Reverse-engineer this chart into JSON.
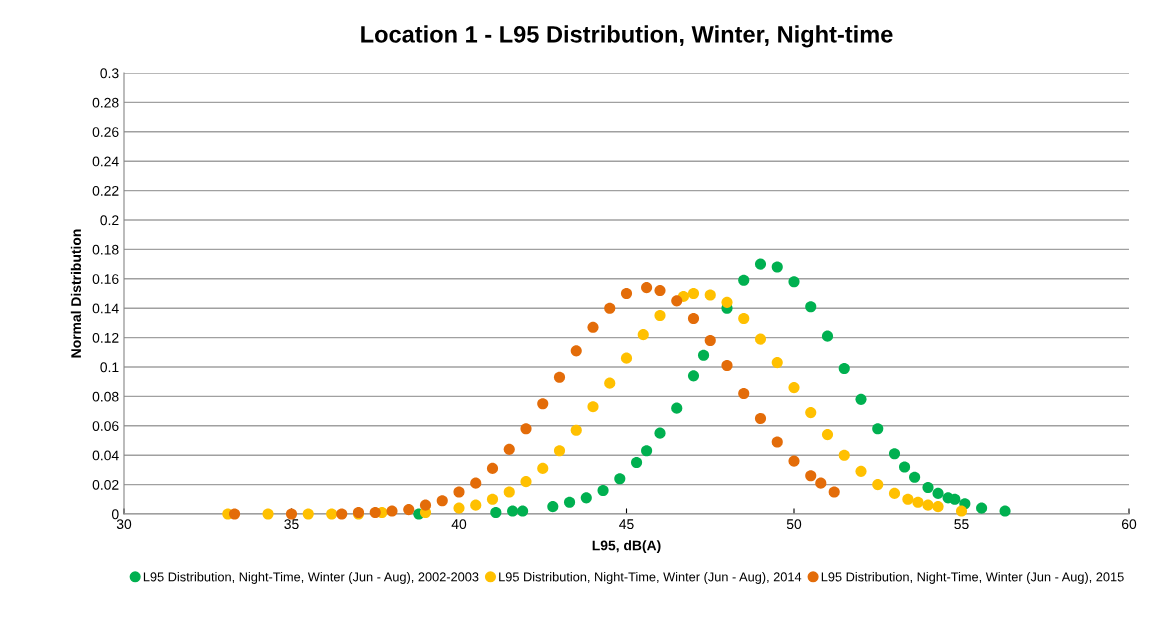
{
  "chart_data": {
    "type": "scatter",
    "title": "Location 1 - L95 Distribution, Winter, Night-time",
    "xlabel": "L95, dB(A)",
    "ylabel": "Normal Distribution",
    "xlim": [
      30,
      60
    ],
    "xticks": [
      30,
      35,
      40,
      45,
      50,
      55,
      60
    ],
    "ylim": [
      0,
      0.3
    ],
    "yticks": [
      0,
      0.02,
      0.04,
      0.06,
      0.08,
      0.1,
      0.12,
      0.14,
      0.16,
      0.18,
      0.2,
      0.22,
      0.24,
      0.26,
      0.28,
      0.3
    ],
    "grid": "y",
    "legend": "bottom",
    "marker": "circle",
    "series": [
      {
        "name": "L95 Distribution, Night-Time, Winter (Jun - Aug), 2002-2003",
        "color": "#00b050",
        "x": [
          38.8,
          41.1,
          41.6,
          41.9,
          42.8,
          43.3,
          43.8,
          44.3,
          44.8,
          45.3,
          45.6,
          46.0,
          46.5,
          47.0,
          47.3,
          48.0,
          48.5,
          49.0,
          49.5,
          50.0,
          50.5,
          51.0,
          51.5,
          52.0,
          52.5,
          53.0,
          53.3,
          53.6,
          54.0,
          54.3,
          54.6,
          54.8,
          55.1,
          55.6,
          56.3
        ],
        "values": [
          0.0,
          0.001,
          0.002,
          0.002,
          0.005,
          0.008,
          0.011,
          0.016,
          0.024,
          0.035,
          0.043,
          0.055,
          0.072,
          0.094,
          0.108,
          0.14,
          0.159,
          0.17,
          0.168,
          0.158,
          0.141,
          0.121,
          0.099,
          0.078,
          0.058,
          0.041,
          0.032,
          0.025,
          0.018,
          0.014,
          0.011,
          0.01,
          0.007,
          0.004,
          0.002
        ]
      },
      {
        "name": "L95 Distribution, Night-Time, Winter (Jun - Aug), 2014",
        "color": "#ffc000",
        "x": [
          33.1,
          34.3,
          35.5,
          36.2,
          37.0,
          37.7,
          39.0,
          40.0,
          40.5,
          41.0,
          41.5,
          42.0,
          42.5,
          43.0,
          43.5,
          44.0,
          44.5,
          45.0,
          45.5,
          46.0,
          46.7,
          47.0,
          47.5,
          48.0,
          48.5,
          49.0,
          49.5,
          50.0,
          50.5,
          51.0,
          51.5,
          52.0,
          52.5,
          53.0,
          53.4,
          53.7,
          54.0,
          54.3,
          55.0
        ],
        "values": [
          0.0,
          0.0,
          0.0,
          0.0,
          0.0,
          0.001,
          0.001,
          0.004,
          0.006,
          0.01,
          0.015,
          0.022,
          0.031,
          0.043,
          0.057,
          0.073,
          0.089,
          0.106,
          0.122,
          0.135,
          0.148,
          0.15,
          0.149,
          0.144,
          0.133,
          0.119,
          0.103,
          0.086,
          0.069,
          0.054,
          0.04,
          0.029,
          0.02,
          0.014,
          0.01,
          0.008,
          0.006,
          0.005,
          0.002
        ]
      },
      {
        "name": "L95 Distribution, Night-Time, Winter (Jun - Aug), 2015",
        "color": "#e36c09",
        "x": [
          33.3,
          35.0,
          36.5,
          37.0,
          37.5,
          38.0,
          38.5,
          39.0,
          39.5,
          40.0,
          40.5,
          41.0,
          41.5,
          42.0,
          42.5,
          43.0,
          43.5,
          44.0,
          44.5,
          45.0,
          45.6,
          46.0,
          46.5,
          47.0,
          47.5,
          48.0,
          48.5,
          49.0,
          49.5,
          50.0,
          50.5,
          50.8,
          51.2
        ],
        "values": [
          0.0,
          0.0,
          0.0,
          0.001,
          0.001,
          0.002,
          0.003,
          0.006,
          0.009,
          0.015,
          0.021,
          0.031,
          0.044,
          0.058,
          0.075,
          0.093,
          0.111,
          0.127,
          0.14,
          0.15,
          0.154,
          0.152,
          0.145,
          0.133,
          0.118,
          0.101,
          0.082,
          0.065,
          0.049,
          0.036,
          0.026,
          0.021,
          0.015
        ]
      }
    ]
  }
}
